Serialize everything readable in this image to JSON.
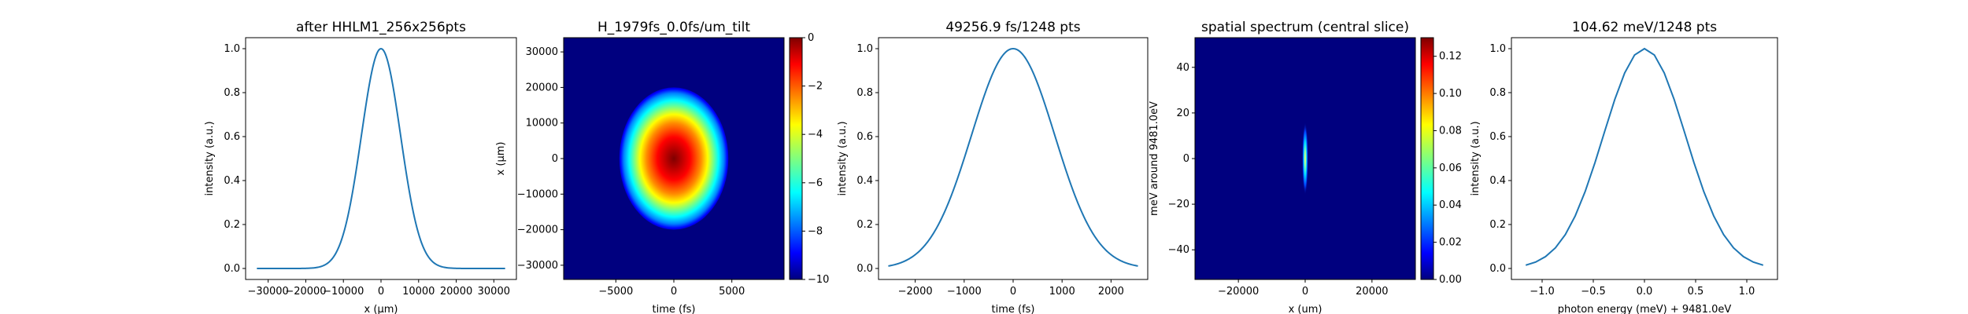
{
  "chart_data": [
    {
      "type": "line",
      "title": "after HHLM1_256x256pts",
      "xlabel": "x (μm)",
      "ylabel": "intensity (a.u.)",
      "xlim": [
        -36000,
        36000
      ],
      "ylim": [
        -0.05,
        1.05
      ],
      "xticks": [
        "−30000",
        "−20000",
        "−10000",
        "0",
        "10000",
        "20000",
        "30000"
      ],
      "xtick_values": [
        -30000,
        -20000,
        -10000,
        0,
        10000,
        20000,
        30000
      ],
      "yticks": [
        "0.0",
        "0.2",
        "0.4",
        "0.6",
        "0.8",
        "1.0"
      ],
      "ytick_values": [
        0,
        0.2,
        0.4,
        0.6,
        0.8,
        1.0
      ],
      "curve": "gaussian",
      "x_range": [
        -33000,
        33000
      ],
      "center": 0,
      "sigma": 5200
    },
    {
      "type": "heatmap",
      "title": "H_1979fs_0.0fs/um_tilt",
      "xlabel": "time (fs)",
      "ylabel": "x (μm)",
      "xlim": [
        -9500,
        9500
      ],
      "ylim": [
        -34000,
        34000
      ],
      "xticks": [
        "−5000",
        "0",
        "5000"
      ],
      "xtick_values": [
        -5000,
        0,
        5000
      ],
      "yticks": [
        "−30000",
        "−20000",
        "−10000",
        "0",
        "10000",
        "20000",
        "30000"
      ],
      "ytick_values": [
        -30000,
        -20000,
        -10000,
        0,
        10000,
        20000,
        30000
      ],
      "colorbar": {
        "min": -10,
        "max": 0,
        "ticks": [
          "0",
          "−2",
          "−4",
          "−6",
          "−8",
          "−10"
        ],
        "tick_values": [
          0,
          -2,
          -4,
          -6,
          -8,
          -10
        ]
      },
      "blob": {
        "center_t": 0,
        "center_x": 0,
        "semi_axis_t": 4700,
        "semi_axis_x": 20000
      }
    },
    {
      "type": "line",
      "title": "49256.9 fs/1248 pts",
      "xlabel": "time (fs)",
      "ylabel": "intensity (a.u.)",
      "xlim": [
        -2750,
        2750
      ],
      "ylim": [
        -0.05,
        1.05
      ],
      "xticks": [
        "−2000",
        "−1000",
        "0",
        "1000",
        "2000"
      ],
      "xtick_values": [
        -2000,
        -1000,
        0,
        1000,
        2000
      ],
      "yticks": [
        "0.0",
        "0.2",
        "0.4",
        "0.6",
        "0.8",
        "1.0"
      ],
      "ytick_values": [
        0,
        0.2,
        0.4,
        0.6,
        0.8,
        1.0
      ],
      "curve": "gaussian",
      "x_range": [
        -2550,
        2550
      ],
      "center": 0,
      "sigma": 850
    },
    {
      "type": "heatmap",
      "title": "spatial spectrum (central slice)",
      "xlabel": "x (um)",
      "ylabel": "meV around 9481.0eV",
      "xlim": [
        -33000,
        33000
      ],
      "ylim": [
        -53,
        53
      ],
      "xticks": [
        "−20000",
        "0",
        "20000"
      ],
      "xtick_values": [
        -20000,
        0,
        20000
      ],
      "yticks": [
        "40",
        "20",
        "0",
        "−20",
        "−40"
      ],
      "ytick_values": [
        40,
        20,
        0,
        -20,
        -40
      ],
      "colorbar": {
        "min": 0,
        "max": 0.13,
        "ticks": [
          "0.00",
          "0.02",
          "0.04",
          "0.06",
          "0.08",
          "0.10",
          "0.12"
        ],
        "tick_values": [
          0,
          0.02,
          0.04,
          0.06,
          0.08,
          0.1,
          0.12
        ]
      },
      "streak": {
        "center_x": 0,
        "center_e": 0,
        "half_width_x": 900,
        "half_height_e": 16
      }
    },
    {
      "type": "line",
      "title": "104.62 meV/1248 pts",
      "xlabel": "photon energy (meV) + 9481.0eV",
      "ylabel": "intensity (a.u.)",
      "xlim": [
        -1.3,
        1.3
      ],
      "ylim": [
        -0.05,
        1.05
      ],
      "xticks": [
        "−1.0",
        "−0.5",
        "0.0",
        "0.5",
        "1.0"
      ],
      "xtick_values": [
        -1.0,
        -0.5,
        0.0,
        0.5,
        1.0
      ],
      "yticks": [
        "0.0",
        "0.2",
        "0.4",
        "0.6",
        "0.8",
        "1.0"
      ],
      "ytick_values": [
        0,
        0.2,
        0.4,
        0.6,
        0.8,
        1.0
      ],
      "curve": "gaussian_sampled",
      "x_range": [
        -1.16,
        1.16
      ],
      "center": 0,
      "sigma": 0.4,
      "n_points": 25
    }
  ]
}
